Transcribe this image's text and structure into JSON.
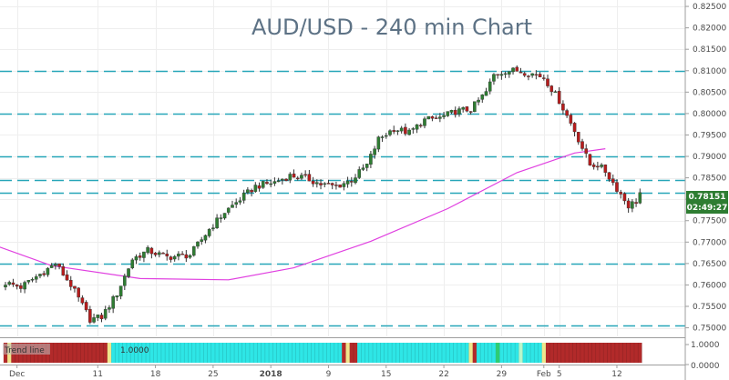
{
  "chart_data": {
    "type": "candlestick",
    "title": "AUD/USD - 240 min Chart",
    "ylim": [
      0.748,
      0.8265
    ],
    "y_ticks": [
      "0.82500",
      "0.82000",
      "0.81500",
      "0.81000",
      "0.80500",
      "0.80000",
      "0.79500",
      "0.79000",
      "0.78500",
      "0.78000",
      "0.77500",
      "0.77000",
      "0.76500",
      "0.76000",
      "0.75500",
      "0.75000"
    ],
    "x_ticks": [
      {
        "label": "Dec",
        "idx": 3,
        "bold": false
      },
      {
        "label": "11",
        "idx": 24,
        "bold": false
      },
      {
        "label": "18",
        "idx": 39,
        "bold": false
      },
      {
        "label": "25",
        "idx": 54,
        "bold": false
      },
      {
        "label": "2018",
        "idx": 69,
        "bold": true
      },
      {
        "label": "9",
        "idx": 84,
        "bold": false
      },
      {
        "label": "15",
        "idx": 99,
        "bold": false
      },
      {
        "label": "22",
        "idx": 114,
        "bold": false
      },
      {
        "label": "29",
        "idx": 129,
        "bold": false
      },
      {
        "label": "Feb",
        "idx": 140,
        "bold": false
      },
      {
        "label": "5",
        "idx": 144,
        "bold": false
      },
      {
        "label": "12",
        "idx": 159,
        "bold": false
      }
    ],
    "level_lines": [
      0.81,
      0.8,
      0.79,
      0.7845,
      0.7815,
      0.765,
      0.7505
    ],
    "level_color": "#26a6b8",
    "up_color": "#2e7d32",
    "down_color": "#b71c1c",
    "ma_color": "#e040e0",
    "ma": [
      [
        -2,
        0.769
      ],
      [
        12,
        0.7645
      ],
      [
        35,
        0.7615
      ],
      [
        58,
        0.7612
      ],
      [
        75,
        0.764
      ],
      [
        95,
        0.7702
      ],
      [
        115,
        0.7778
      ],
      [
        133,
        0.7862
      ],
      [
        148,
        0.7908
      ],
      [
        156,
        0.7918
      ]
    ],
    "price_anchors": [
      [
        0,
        0.7605
      ],
      [
        4,
        0.7595
      ],
      [
        9,
        0.7625
      ],
      [
        13,
        0.765
      ],
      [
        17,
        0.76
      ],
      [
        22,
        0.752
      ],
      [
        25,
        0.7525
      ],
      [
        29,
        0.758
      ],
      [
        33,
        0.766
      ],
      [
        37,
        0.768
      ],
      [
        42,
        0.7665
      ],
      [
        48,
        0.767
      ],
      [
        53,
        0.773
      ],
      [
        57,
        0.777
      ],
      [
        61,
        0.78
      ],
      [
        65,
        0.783
      ],
      [
        70,
        0.784
      ],
      [
        74,
        0.7855
      ],
      [
        78,
        0.785
      ],
      [
        82,
        0.7835
      ],
      [
        86,
        0.783
      ],
      [
        90,
        0.7845
      ],
      [
        94,
        0.788
      ],
      [
        97,
        0.794
      ],
      [
        101,
        0.7965
      ],
      [
        105,
        0.7955
      ],
      [
        109,
        0.7985
      ],
      [
        113,
        0.799
      ],
      [
        117,
        0.8005
      ],
      [
        121,
        0.801
      ],
      [
        125,
        0.805
      ],
      [
        127,
        0.809
      ],
      [
        130,
        0.81
      ],
      [
        133,
        0.81
      ],
      [
        136,
        0.8095
      ],
      [
        140,
        0.8085
      ],
      [
        144,
        0.803
      ],
      [
        148,
        0.796
      ],
      [
        152,
        0.788
      ],
      [
        154,
        0.788
      ],
      [
        156,
        0.7865
      ],
      [
        159,
        0.7825
      ],
      [
        162,
        0.7785
      ],
      [
        164,
        0.7795
      ],
      [
        165,
        0.7815
      ]
    ],
    "current_price": "0.78151",
    "countdown": "02:49:27",
    "indicator": {
      "label": "Trend line",
      "value": "1.0000",
      "axis_labels": [
        "1.0000",
        "0.0000"
      ],
      "segments": [
        {
          "from": 0,
          "to": 28,
          "color": "#b22a2a"
        },
        {
          "from": 28,
          "to": 88,
          "color": "#2ee6e6"
        },
        {
          "from": 88,
          "to": 92,
          "color": "#b22a2a"
        },
        {
          "from": 92,
          "to": 121,
          "color": "#2ee6e6"
        },
        {
          "from": 121,
          "to": 123,
          "color": "#b22a2a"
        },
        {
          "from": 123,
          "to": 141,
          "color": "#2ee6e6"
        },
        {
          "from": 141,
          "to": 166,
          "color": "#b22a2a"
        }
      ],
      "accents": [
        {
          "idx": 1,
          "color": "#f0e68c"
        },
        {
          "idx": 27,
          "color": "#f0e68c"
        },
        {
          "idx": 89,
          "color": "#f0e68c"
        },
        {
          "idx": 121,
          "color": "#f0e68c"
        },
        {
          "idx": 128,
          "color": "#2ecc71"
        },
        {
          "idx": 134,
          "color": "#b9f6ca"
        },
        {
          "idx": 140,
          "color": "#f0e68c"
        }
      ]
    }
  }
}
